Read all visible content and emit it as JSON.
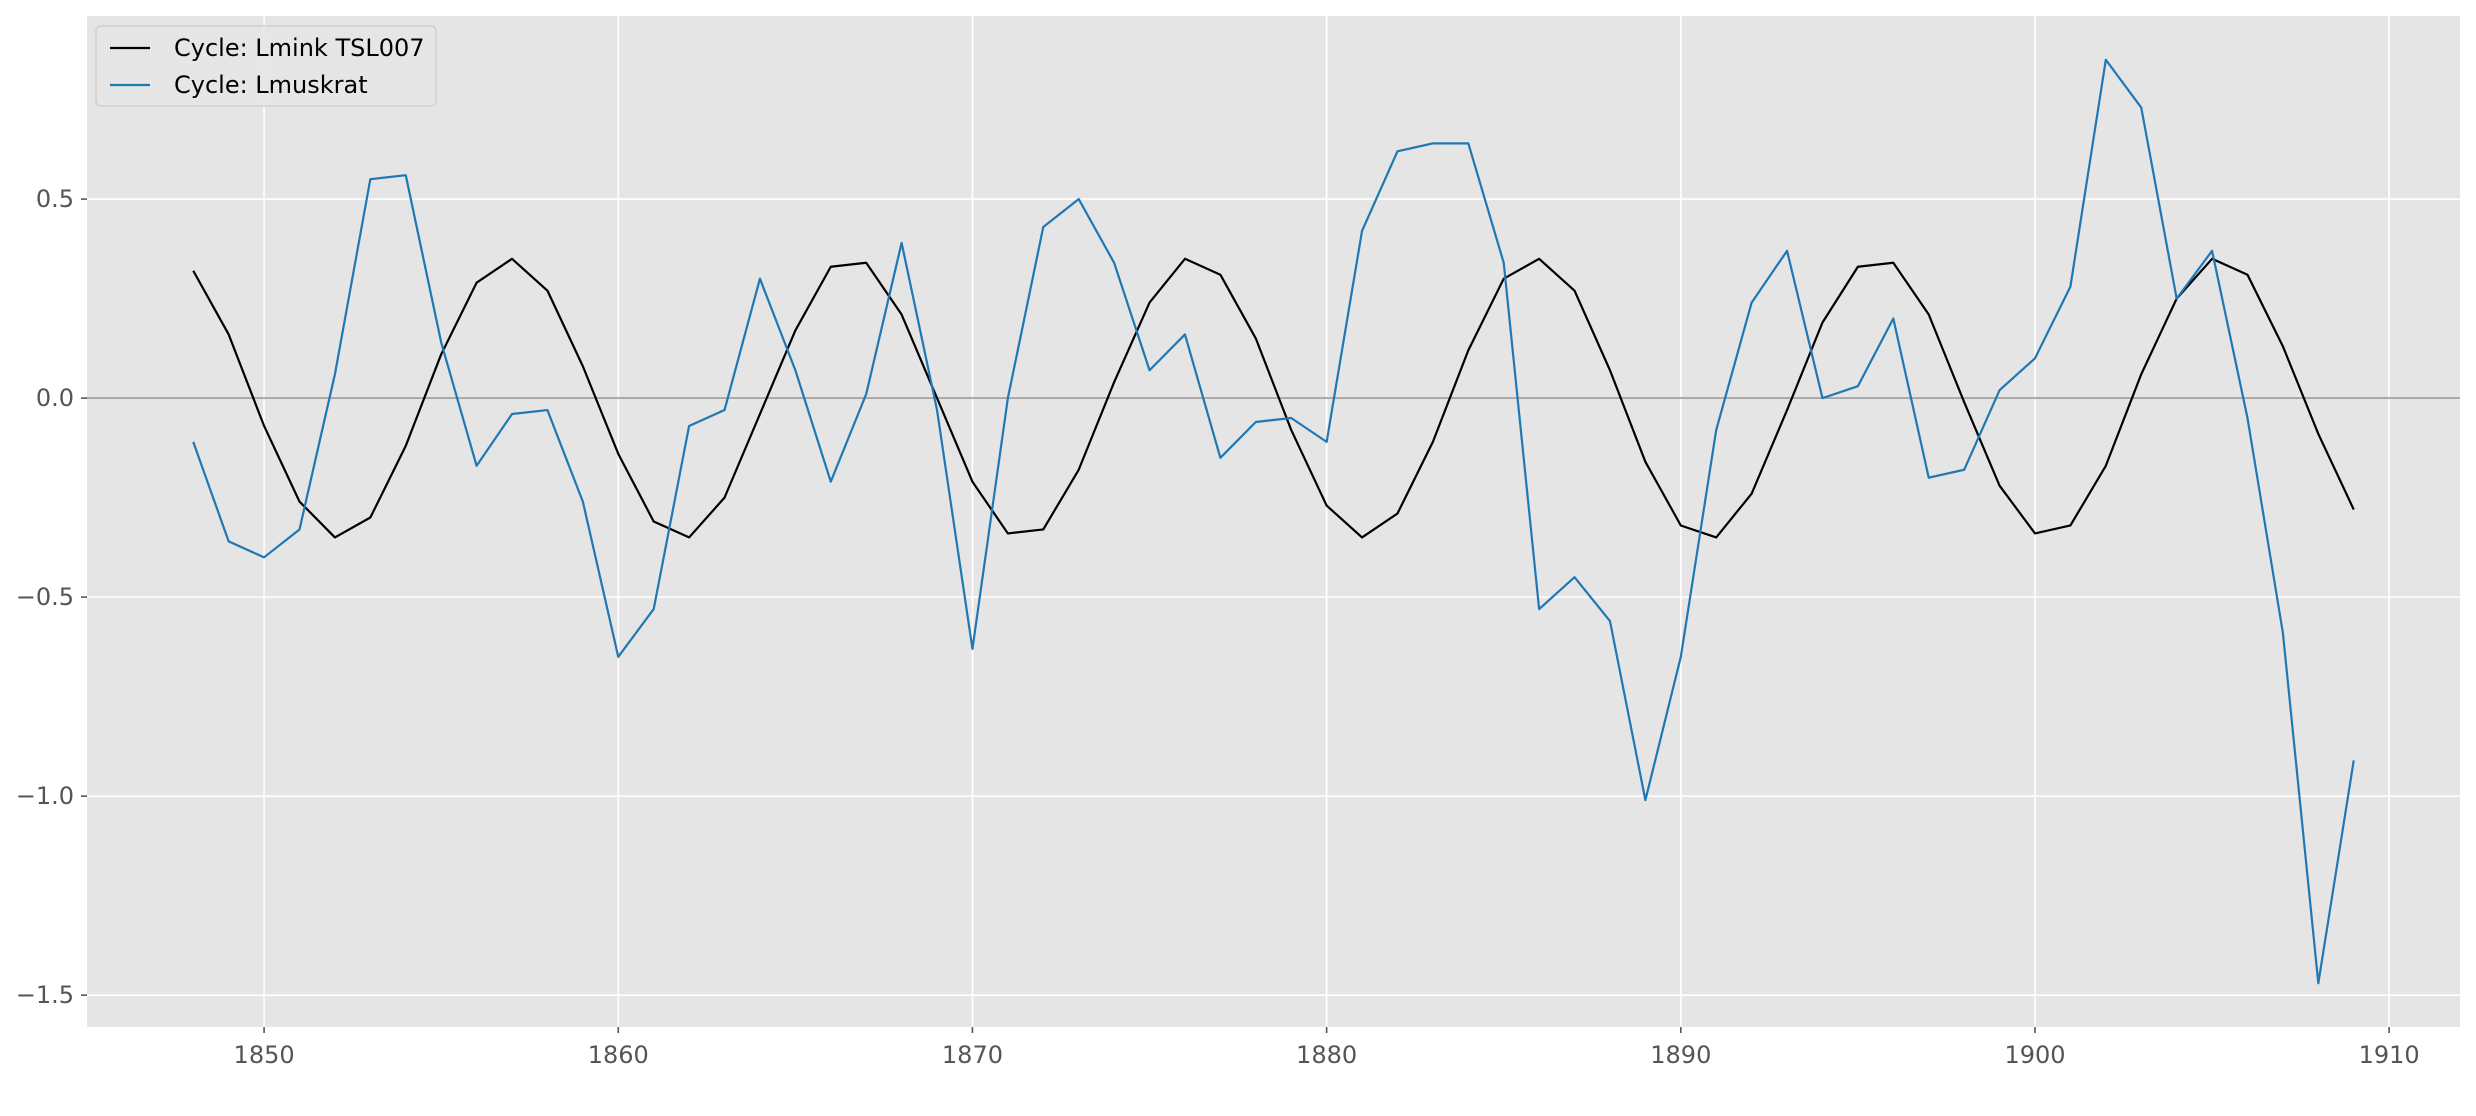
{
  "chart_data": {
    "type": "line",
    "title": "",
    "xlabel": "",
    "ylabel": "",
    "xlim": [
      1845,
      1912
    ],
    "ylim": [
      -1.58,
      0.96
    ],
    "grid": true,
    "legend_position": "top-left",
    "background_color": "#e5e5e5",
    "grid_color": "#ffffff",
    "zero_line_color": "#999999",
    "x_ticks": [
      1850,
      1860,
      1870,
      1880,
      1890,
      1900,
      1910
    ],
    "x_tick_labels": [
      "1850",
      "1860",
      "1870",
      "1880",
      "1890",
      "1900",
      "1910"
    ],
    "y_ticks": [
      -1.5,
      -1.0,
      -0.5,
      0.0,
      0.5
    ],
    "y_tick_labels": [
      "−1.5",
      "−1.0",
      "−0.5",
      "0.0",
      "0.5"
    ],
    "x": [
      1848,
      1849,
      1850,
      1851,
      1852,
      1853,
      1854,
      1855,
      1856,
      1857,
      1858,
      1859,
      1860,
      1861,
      1862,
      1863,
      1864,
      1865,
      1866,
      1867,
      1868,
      1869,
      1870,
      1871,
      1872,
      1873,
      1874,
      1875,
      1876,
      1877,
      1878,
      1879,
      1880,
      1881,
      1882,
      1883,
      1884,
      1885,
      1886,
      1887,
      1888,
      1889,
      1890,
      1891,
      1892,
      1893,
      1894,
      1895,
      1896,
      1897,
      1898,
      1899,
      1900,
      1901,
      1902,
      1903,
      1904,
      1905,
      1906,
      1907,
      1908,
      1909
    ],
    "series": [
      {
        "name": "Cycle: Lmink TSL007",
        "color": "#000000",
        "values": [
          0.32,
          0.16,
          -0.07,
          -0.26,
          -0.35,
          -0.3,
          -0.12,
          0.11,
          0.29,
          0.35,
          0.27,
          0.08,
          -0.14,
          -0.31,
          -0.35,
          -0.25,
          -0.04,
          0.17,
          0.33,
          0.34,
          0.21,
          0.0,
          -0.21,
          -0.34,
          -0.33,
          -0.18,
          0.04,
          0.24,
          0.35,
          0.31,
          0.15,
          -0.08,
          -0.27,
          -0.35,
          -0.29,
          -0.11,
          0.12,
          0.3,
          0.35,
          0.27,
          0.07,
          -0.16,
          -0.32,
          -0.35,
          -0.24,
          -0.03,
          0.19,
          0.33,
          0.34,
          0.21,
          -0.01,
          -0.22,
          -0.34,
          -0.32,
          -0.17,
          0.06,
          0.25,
          0.35,
          0.31,
          0.13,
          -0.09,
          -0.28
        ]
      },
      {
        "name": "Cycle: Lmuskrat",
        "color": "#1f77b4",
        "values": [
          -0.11,
          -0.36,
          -0.4,
          -0.33,
          0.06,
          0.55,
          0.56,
          0.14,
          -0.17,
          -0.04,
          -0.03,
          -0.26,
          -0.65,
          -0.53,
          -0.07,
          -0.03,
          0.3,
          0.07,
          -0.21,
          0.01,
          0.39,
          -0.03,
          -0.63,
          0.0,
          0.43,
          0.5,
          0.34,
          0.07,
          0.16,
          -0.15,
          -0.06,
          -0.05,
          -0.11,
          0.42,
          0.62,
          0.64,
          0.64,
          0.34,
          -0.53,
          -0.45,
          -0.56,
          -1.01,
          -0.65,
          -0.08,
          0.24,
          0.37,
          0.0,
          0.03,
          0.2,
          -0.2,
          -0.18,
          0.02,
          0.1,
          0.28,
          0.85,
          0.73,
          0.25,
          0.37,
          -0.05,
          -0.59,
          -1.47,
          -0.91
        ]
      }
    ]
  }
}
